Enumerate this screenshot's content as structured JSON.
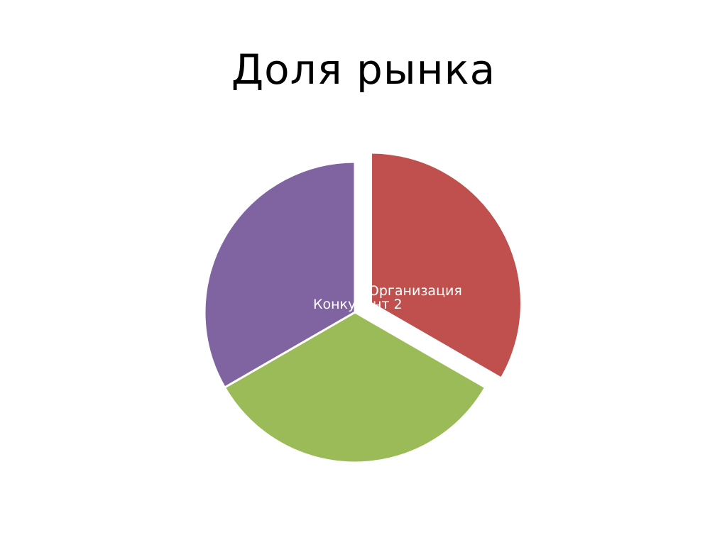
{
  "slide": {
    "title": "Доля рынка"
  },
  "chart_data": {
    "type": "pie",
    "title": "Доля рынка",
    "start_angle_deg": 0,
    "direction": "clockwise",
    "slices": [
      {
        "label": "Организация",
        "value": 33.3,
        "color": "#c0504d",
        "exploded": true
      },
      {
        "label": "",
        "value": 33.3,
        "color": "#9bbb59",
        "exploded": false
      },
      {
        "label": "Конкурент 2",
        "value": 33.3,
        "color": "#8064a2",
        "exploded": false
      }
    ]
  }
}
